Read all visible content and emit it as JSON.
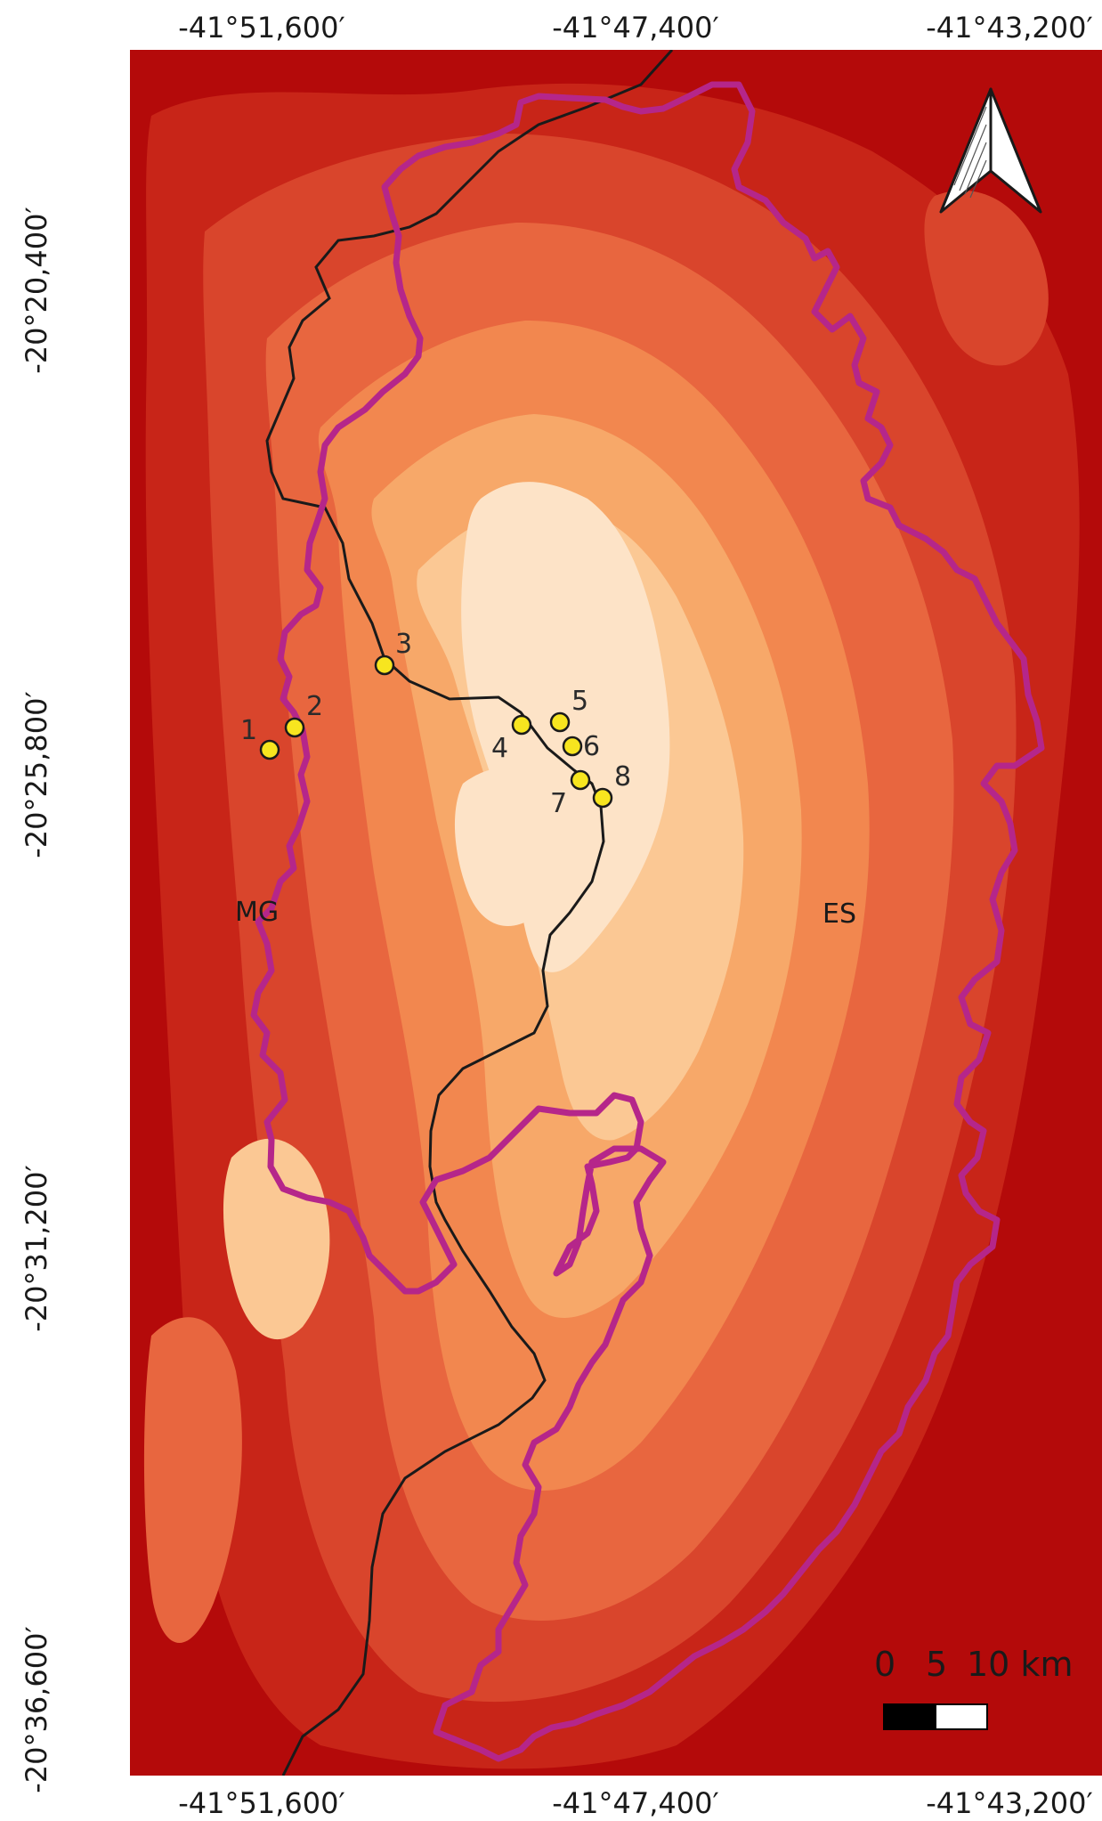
{
  "map": {
    "top_ticks": [
      "-41°51,600′",
      "-41°47,400′",
      "-41°43,200′"
    ],
    "bottom_ticks": [
      "-41°51,600′",
      "-41°47,400′",
      "-41°43,200′"
    ],
    "left_ticks": [
      "-20°20,400′",
      "-20°25,800′",
      "-20°31,200′",
      "-20°36,600′"
    ],
    "states": [
      {
        "id": "mg",
        "label": "MG"
      },
      {
        "id": "es",
        "label": "ES"
      }
    ],
    "sites": [
      "1",
      "2",
      "3",
      "4",
      "5",
      "6",
      "7",
      "8"
    ],
    "scale_bar": {
      "labels": [
        "0",
        "5",
        "10 km"
      ]
    },
    "north_arrow": "north-arrow-icon",
    "colors": {
      "lowland": "#b40a0a",
      "highland": "#fbe2c4",
      "boundary_line": "#b5268a",
      "state_line": "#1a1a1a",
      "site_marker": "#f7e51f"
    }
  }
}
